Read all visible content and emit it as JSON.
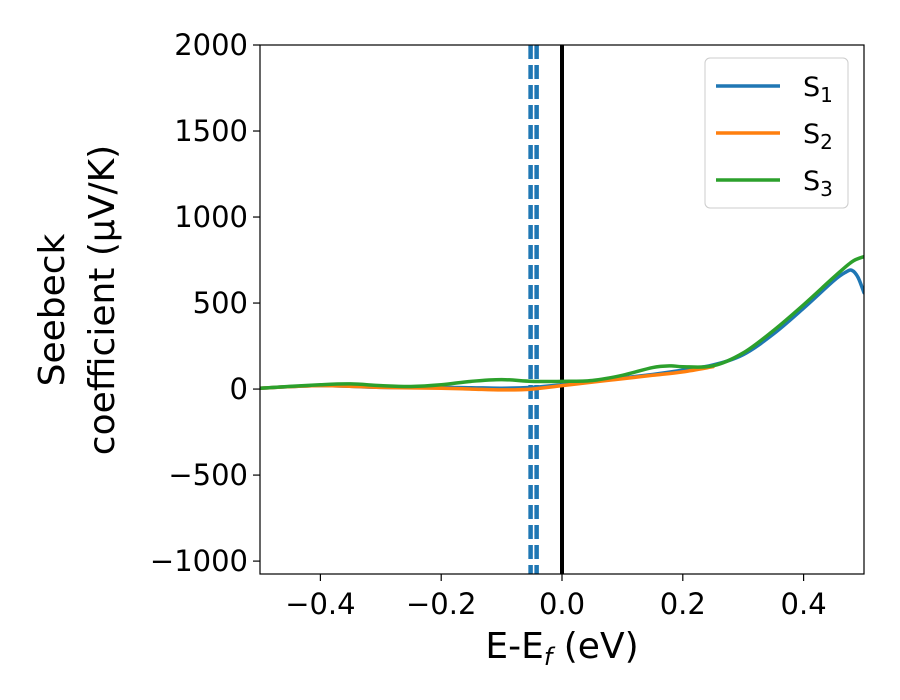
{
  "chart_data": {
    "type": "line",
    "title": "",
    "xlabel": {
      "base": "E-E",
      "sub": "f",
      "tail": " (eV)"
    },
    "ylabel": {
      "line1": "Seebeck",
      "line2": "coefficient  (μV/K)"
    },
    "xlim": [
      -0.5,
      0.5
    ],
    "ylim": [
      -1075,
      2000
    ],
    "xticks": [
      -0.4,
      -0.2,
      0.0,
      0.2,
      0.4
    ],
    "xtick_labels": [
      "−0.4",
      "−0.2",
      "0.0",
      "0.2",
      "0.4"
    ],
    "yticks": [
      -1000,
      -500,
      0,
      500,
      1000,
      1500,
      2000
    ],
    "ytick_labels": [
      "−1000",
      "−500",
      "0",
      "500",
      "1000",
      "1500",
      "2000"
    ],
    "grid": false,
    "legend_position": "top-right",
    "series": [
      {
        "name": "S",
        "subscript": "1",
        "color": "#1f77b4",
        "linestyle": "solid",
        "x": [
          -0.5,
          -0.4,
          -0.3,
          -0.2,
          -0.15,
          -0.1,
          -0.05,
          0.0,
          0.05,
          0.1,
          0.15,
          0.2,
          0.25,
          0.3,
          0.35,
          0.4,
          0.45,
          0.47,
          0.48,
          0.49,
          0.5
        ],
        "y": [
          5,
          20,
          10,
          10,
          8,
          5,
          10,
          25,
          45,
          65,
          85,
          110,
          140,
          200,
          320,
          470,
          630,
          680,
          690,
          650,
          560
        ]
      },
      {
        "name": "S",
        "subscript": "2",
        "color": "#ff7f0e",
        "linestyle": "solid",
        "x": [
          -0.5,
          -0.4,
          -0.3,
          -0.2,
          -0.15,
          -0.1,
          -0.05,
          0.0,
          0.05,
          0.1,
          0.15,
          0.2,
          0.25
        ],
        "y": [
          5,
          20,
          10,
          5,
          0,
          -5,
          0,
          20,
          40,
          60,
          80,
          100,
          130
        ]
      },
      {
        "name": "S",
        "subscript": "3",
        "color": "#2ca02c",
        "linestyle": "solid",
        "x": [
          -0.5,
          -0.4,
          -0.35,
          -0.3,
          -0.25,
          -0.2,
          -0.15,
          -0.1,
          -0.05,
          0.0,
          0.05,
          0.1,
          0.15,
          0.18,
          0.2,
          0.25,
          0.3,
          0.35,
          0.4,
          0.45,
          0.48,
          0.5
        ],
        "y": [
          5,
          25,
          30,
          20,
          15,
          25,
          45,
          55,
          45,
          45,
          50,
          80,
          125,
          135,
          130,
          135,
          210,
          340,
          490,
          650,
          740,
          770
        ]
      }
    ],
    "vlines": [
      {
        "x": 0.0,
        "color": "#000000",
        "linestyle": "solid"
      },
      {
        "x": -0.052,
        "color": "#1f77b4",
        "linestyle": "dashed"
      },
      {
        "x": -0.042,
        "color": "#1f77b4",
        "linestyle": "dashed"
      }
    ]
  }
}
